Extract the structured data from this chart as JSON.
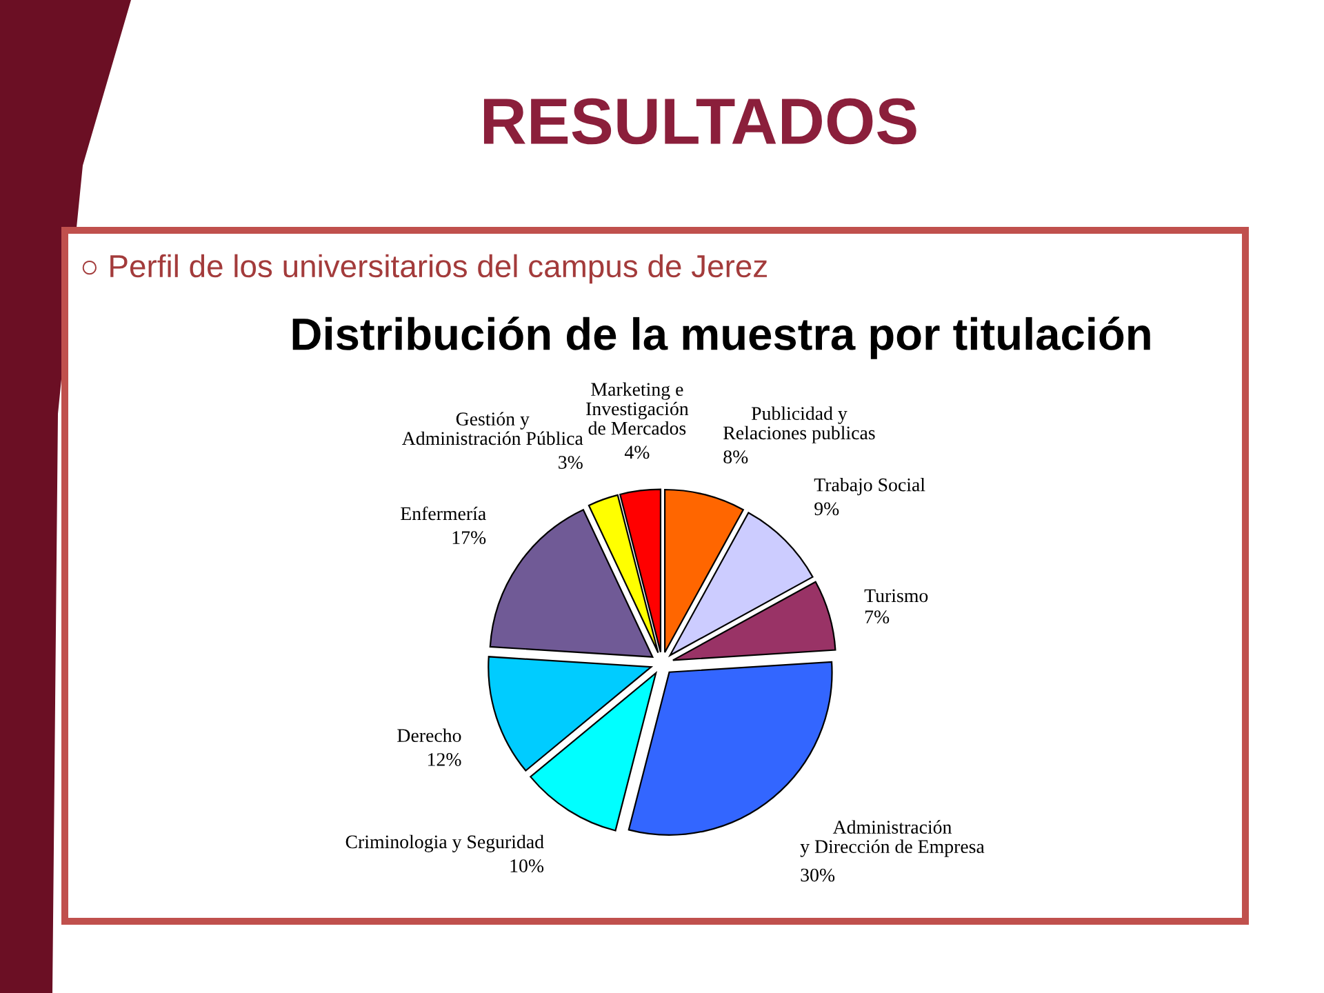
{
  "chart_data": {
    "type": "pie",
    "title": "Distribución de la muestra por titulación",
    "subtitle": "○ Perfil de los universitarios del campus de Jerez",
    "annotations": [
      "RESULTADOS"
    ],
    "categories": [
      "Publicidad y\nRelaciones publicas",
      "Trabajo Social",
      "Turismo",
      "Administración\ny Dirección de Empresa",
      "Criminologia y Seguridad",
      "Derecho",
      "Enfermería",
      "Gestión y\nAdministración Pública",
      "Marketing e\nInvestigación\nde Mercados"
    ],
    "values": [
      8,
      9,
      7,
      30,
      10,
      12,
      17,
      3,
      4
    ],
    "value_labels": [
      "8%",
      "9%",
      "7%",
      "30%",
      "10%",
      "12%",
      "17%",
      "3%",
      "4%"
    ],
    "colors": [
      "#ff6600",
      "#ccccff",
      "#993366",
      "#3366ff",
      "#00ffff",
      "#00ccff",
      "#705a96",
      "#ffff00",
      "#ff0000"
    ]
  }
}
